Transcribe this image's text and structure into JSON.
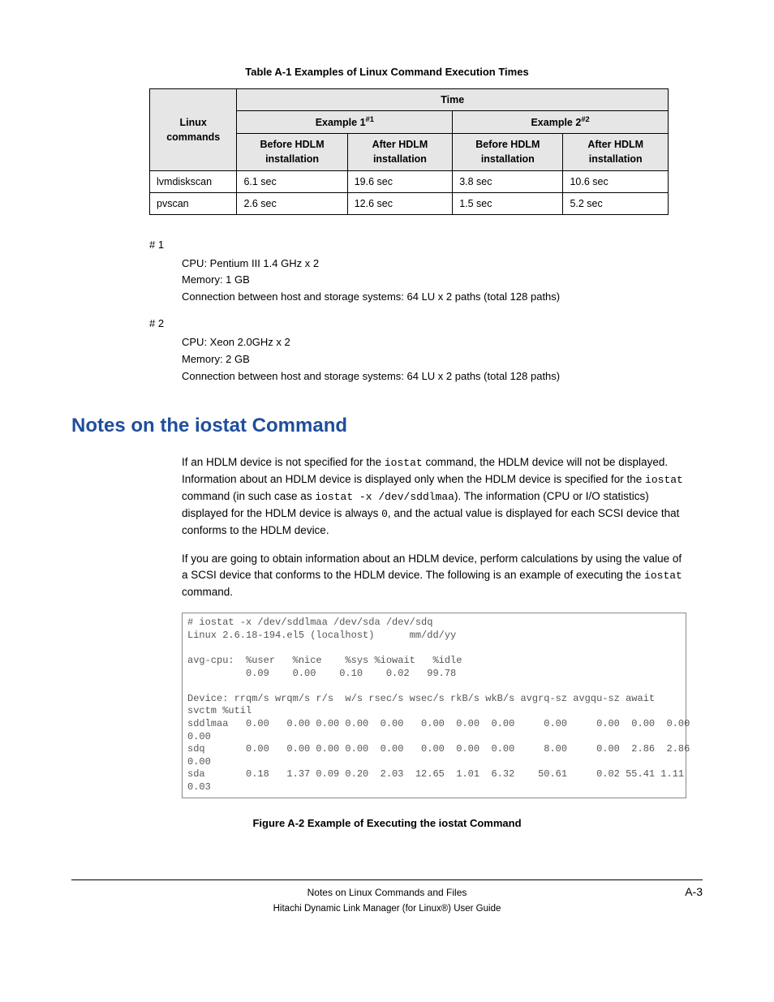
{
  "table": {
    "caption": "Table A-1 Examples of Linux Command Execution Times",
    "col_rowhead": "Linux commands",
    "col_time": "Time",
    "example1": "Example 1",
    "example1_sup": "#1",
    "example2": "Example 2",
    "example2_sup": "#2",
    "before": "Before HDLM installation",
    "after": "After HDLM installation",
    "rows": [
      {
        "cmd": "lvmdiskscan",
        "b1": "6.1 sec",
        "a1": "19.6 sec",
        "b2": "3.8 sec",
        "a2": "10.6 sec"
      },
      {
        "cmd": "pvscan",
        "b1": "2.6 sec",
        "a1": "12.6 sec",
        "b2": "1.5 sec",
        "a2": "5.2 sec"
      }
    ],
    "header_bg": "#e6e6e6",
    "border_color": "#000000"
  },
  "footnotes": [
    {
      "label": "# 1",
      "lines": [
        "CPU: Pentium III 1.4 GHz x 2",
        "Memory: 1 GB",
        "Connection between host and storage systems: 64 LU x 2 paths (total 128 paths)"
      ]
    },
    {
      "label": "# 2",
      "lines": [
        "CPU: Xeon 2.0GHz x 2",
        "Memory: 2 GB",
        "Connection between host and storage systems: 64 LU x 2 paths (total 128 paths)"
      ]
    }
  ],
  "section": {
    "heading": "Notes on the iostat Command",
    "heading_color": "#1f4e9c",
    "p1_a": "If an HDLM device is not specified for the ",
    "p1_code1": "iostat",
    "p1_b": " command, the HDLM device will not be displayed. Information about an HDLM device is displayed only when the HDLM device is specified for the ",
    "p1_code2": "iostat",
    "p1_c": " command (in such case as ",
    "p1_code3": "iostat -x /dev/sddlmaa",
    "p1_d": "). The information (CPU or I/O statistics) displayed for the HDLM device is always ",
    "p1_code4": "0",
    "p1_e": ", and the actual value is displayed for each SCSI device that conforms to the HDLM device.",
    "p2_a": "If you are going to obtain information about an HDLM device, perform calculations by using the value of a SCSI device that conforms to the HDLM device. The following is an example of executing the ",
    "p2_code1": "iostat",
    "p2_b": " command."
  },
  "terminal": {
    "text": "# iostat -x /dev/sddlmaa /dev/sda /dev/sdq\nLinux 2.6.18-194.el5 (localhost)      mm/dd/yy\n\navg-cpu:  %user   %nice    %sys %iowait   %idle\n          0.09    0.00    0.10    0.02   99.78\n\nDevice: rrqm/s wrqm/s r/s  w/s rsec/s wsec/s rkB/s wkB/s avgrq-sz avgqu-sz await\nsvctm %util\nsddlmaa   0.00   0.00 0.00 0.00  0.00   0.00  0.00  0.00     0.00     0.00  0.00  0.00\n0.00\nsdq       0.00   0.00 0.00 0.00  0.00   0.00  0.00  0.00     8.00     0.00  2.86  2.86\n0.00\nsda       0.18   1.37 0.09 0.20  2.03  12.65  1.01  6.32    50.61     0.02 55.41 1.11\n0.03",
    "text_color": "#555555",
    "border_color": "#888888"
  },
  "figure_caption": "Figure A-2 Example of Executing the iostat Command",
  "footer": {
    "title": "Notes on Linux Commands and Files",
    "page": "A-3",
    "sub": "Hitachi Dynamic Link Manager (for Linux®) User Guide"
  }
}
